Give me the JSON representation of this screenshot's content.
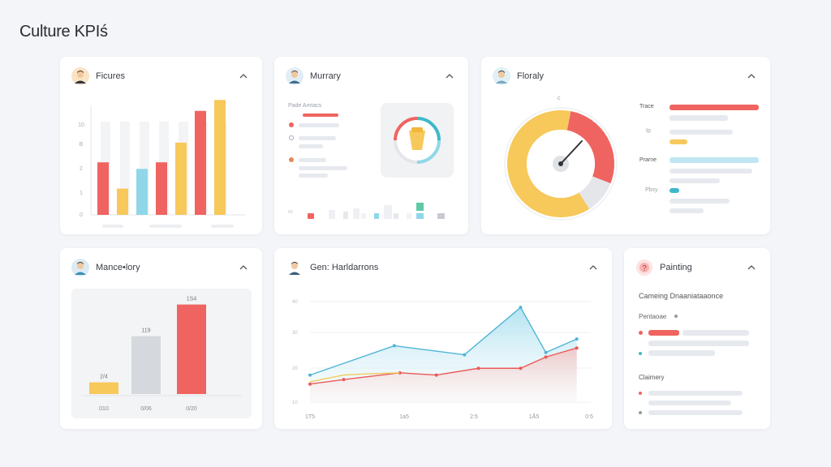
{
  "page": {
    "title": "Culture KPIś"
  },
  "colors": {
    "red": "#ef6461",
    "yellow": "#f7c85a",
    "blue": "#8fd7e8",
    "gray": "#d5d8dc",
    "teal": "#3fb8c9"
  },
  "cards": {
    "figures": {
      "title": "Fіcures",
      "avatar_icon": "person-avatar-icon",
      "chart_data": {
        "type": "bar",
        "yticks": [
          "0",
          "1",
          "2",
          "B",
          "10"
        ],
        "ylim": [
          0,
          10
        ],
        "values": [
          4.8,
          2.4,
          4.2,
          4.8,
          6.6,
          9.5,
          10.5
        ],
        "colors": [
          "#ef6461",
          "#f7c85a",
          "#8fd7e8",
          "#ef6461",
          "#f7c85a",
          "#ef6461",
          "#f7c85a"
        ]
      }
    },
    "murrary": {
      "title": "Murrary",
      "avatar_icon": "person-avatar-icon",
      "label": "Pade Amtacs"
    },
    "floraly": {
      "title": "Floraly",
      "avatar_icon": "person-avatar-icon",
      "gauge_top": "c",
      "row1_label": "Trace",
      "row1_sub": "Ip",
      "row2_label": "Prarne",
      "row2_sub": "Pbsy",
      "chart_data": {
        "type": "pie",
        "segments": [
          {
            "color": "#f7c85a",
            "value": 0.62
          },
          {
            "color": "#ef6461",
            "value": 0.28
          },
          {
            "color": "#e4e6ea",
            "value": 0.1
          }
        ]
      }
    },
    "mancelory": {
      "title": "Mance•lory",
      "avatar_icon": "person-avatar-icon",
      "chart_data": {
        "type": "bar",
        "categories": [
          "010",
          "0/06",
          "0/20"
        ],
        "values": [
          24,
          119,
          184
        ],
        "value_labels": [
          "2/4",
          "119",
          "1S4"
        ],
        "colors": [
          "#f7c85a",
          "#d5d8dc",
          "#ef6461"
        ]
      }
    },
    "gen_harldarrons": {
      "title": "Gen: Harldarrons",
      "avatar_icon": "person-avatar-icon",
      "chart_data": {
        "type": "area",
        "xticks": [
          "1T5",
          "1a5",
          "2:5",
          "1Å5",
          "0:5"
        ],
        "yticks": [
          "10",
          "20",
          "30",
          "40"
        ],
        "series": [
          {
            "color": "#4fb4d6",
            "values": [
              [
                0,
                1.2
              ],
              [
                30,
                2.5
              ],
              [
                55,
                2.1
              ],
              [
                75,
                4.2
              ],
              [
                84,
                2.2
              ],
              [
                95,
                2.8
              ]
            ]
          },
          {
            "color": "#ea5a58",
            "values": [
              [
                0,
                0.8
              ],
              [
                12,
                1.0
              ],
              [
                32,
                1.3
              ],
              [
                45,
                1.2
              ],
              [
                60,
                1.5
              ],
              [
                75,
                1.5
              ],
              [
                84,
                2.0
              ],
              [
                95,
                2.4
              ]
            ]
          },
          {
            "color": "#f2c95d",
            "values": [
              [
                0,
                0.9
              ],
              [
                12,
                1.2
              ],
              [
                20,
                1.25
              ],
              [
                32,
                1.3
              ]
            ]
          }
        ]
      }
    },
    "painting": {
      "title": "Painting",
      "avatar_icon": "question-badge-icon",
      "subtitle": "Cameing Dnaaniataaonce",
      "section1": "Pentaoae",
      "section2": "Claimery"
    }
  }
}
